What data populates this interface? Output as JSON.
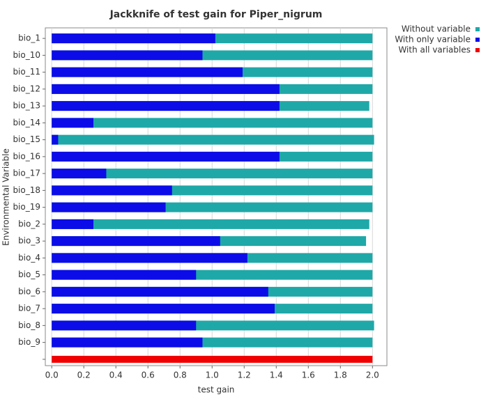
{
  "chart_data": {
    "type": "hbar_overlay",
    "title": "Jackknife of test gain for Piper_nigrum",
    "xlabel": "test gain",
    "ylabel": "Environmental Variable",
    "categories": [
      "bio_1",
      "bio_10",
      "bio_11",
      "bio_12",
      "bio_13",
      "bio_14",
      "bio_15",
      "bio_16",
      "bio_17",
      "bio_18",
      "bio_19",
      "bio_2",
      "bio_3",
      "bio_4",
      "bio_5",
      "bio_6",
      "bio_7",
      "bio_8",
      "bio_9",
      null
    ],
    "series": [
      {
        "name": "Without variable",
        "color": "#1fa8a8",
        "values": [
          2.0,
          2.0,
          2.0,
          2.0,
          1.98,
          2.0,
          2.01,
          2.0,
          2.0,
          2.0,
          2.0,
          1.98,
          1.96,
          2.0,
          2.0,
          2.0,
          2.0,
          2.01,
          2.0,
          null
        ]
      },
      {
        "name": "With only variable",
        "color": "#0c0ce8",
        "values": [
          1.02,
          0.94,
          1.19,
          1.42,
          1.42,
          0.26,
          0.04,
          1.42,
          0.34,
          0.75,
          0.71,
          0.26,
          1.05,
          1.22,
          0.9,
          1.35,
          1.39,
          0.9,
          0.94,
          null
        ]
      },
      {
        "name": "With all variables",
        "color": "#f00000",
        "values": [
          null,
          null,
          null,
          null,
          null,
          null,
          null,
          null,
          null,
          null,
          null,
          null,
          null,
          null,
          null,
          null,
          null,
          null,
          null,
          2.0
        ]
      }
    ],
    "xlim": [
      -0.04,
      2.09
    ],
    "xticks": [
      {
        "value": 0,
        "label": "0.0"
      },
      0.2,
      0.4,
      0.6,
      0.8,
      {
        "value": 1,
        "label": "1.0"
      },
      1.2,
      1.4,
      1.6,
      1.8,
      {
        "value": 2,
        "label": "2.0"
      }
    ],
    "grid": true,
    "legend": "outside-top-right"
  }
}
